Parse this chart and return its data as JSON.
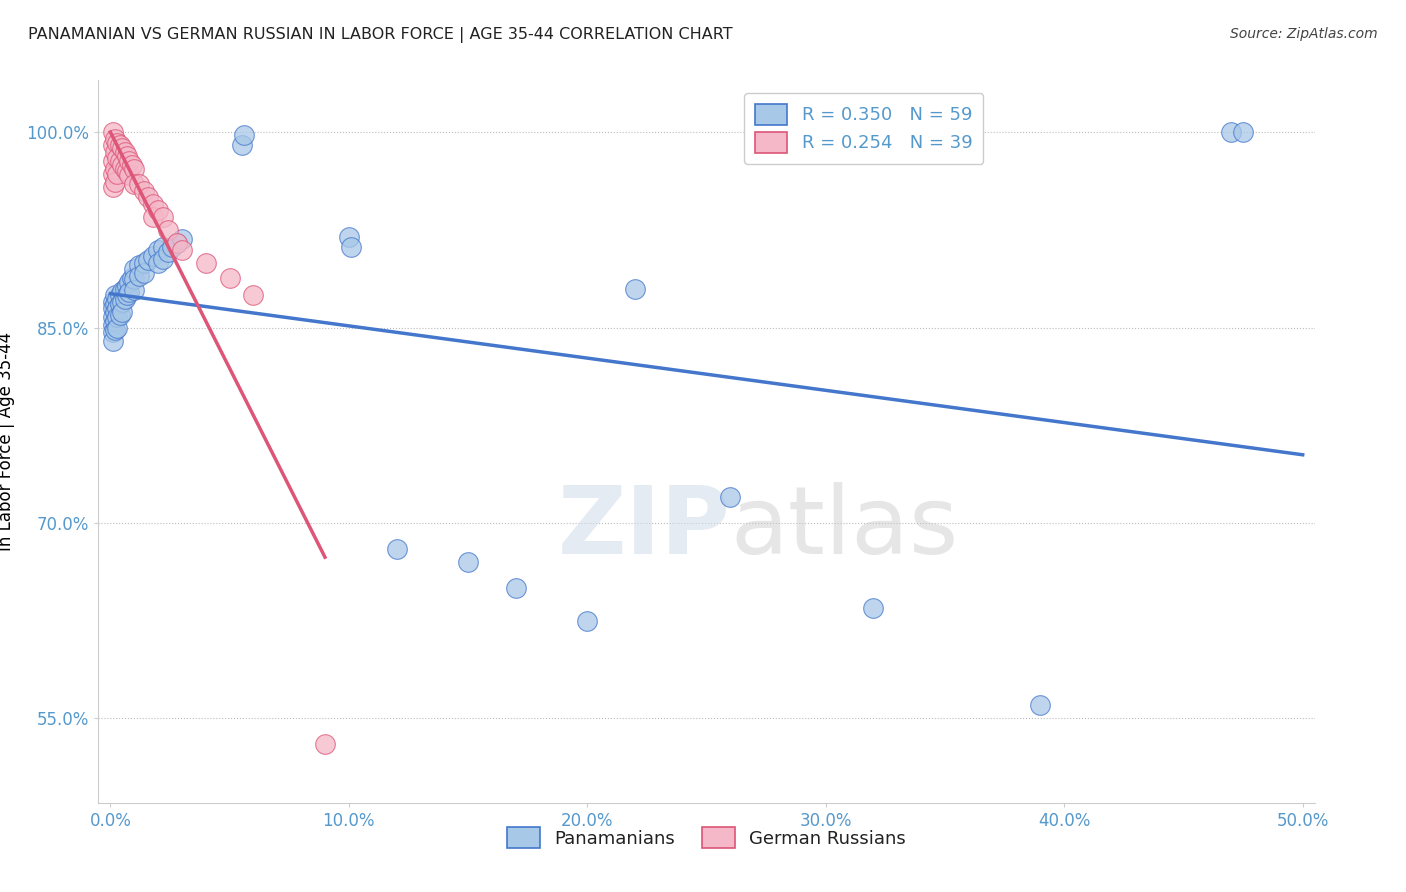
{
  "title": "PANAMANIAN VS GERMAN RUSSIAN IN LABOR FORCE | AGE 35-44 CORRELATION CHART",
  "source": "Source: ZipAtlas.com",
  "xlabel_label": "Panamanians",
  "ylabel_label": "In Labor Force | Age 35-44",
  "xlim": [
    -0.005,
    0.505
  ],
  "ylim": [
    0.485,
    1.04
  ],
  "xticks": [
    0.0,
    0.1,
    0.2,
    0.3,
    0.4,
    0.5
  ],
  "yticks": [
    0.55,
    0.7,
    0.85,
    1.0
  ],
  "ytick_labels": [
    "55.0%",
    "70.0%",
    "85.0%",
    "100.0%"
  ],
  "xtick_labels": [
    "0.0%",
    "10.0%",
    "20.0%",
    "30.0%",
    "40.0%",
    "50.0%"
  ],
  "legend_blue_r": "R = 0.350",
  "legend_blue_n": "N = 59",
  "legend_pink_r": "R = 0.254",
  "legend_pink_n": "N = 39",
  "blue_color": "#a8c8e8",
  "pink_color": "#f4b8c8",
  "trend_blue": "#4477cc",
  "trend_pink": "#dd5577",
  "axis_color": "#5599cc",
  "background": "#ffffff",
  "watermark_zip": "ZIP",
  "watermark_atlas": "atlas",
  "blue_x": [
    0.001,
    0.001,
    0.001,
    0.001,
    0.001,
    0.001,
    0.002,
    0.002,
    0.002,
    0.002,
    0.002,
    0.003,
    0.003,
    0.003,
    0.003,
    0.004,
    0.004,
    0.004,
    0.005,
    0.005,
    0.005,
    0.006,
    0.006,
    0.007,
    0.007,
    0.008,
    0.008,
    0.009,
    0.01,
    0.01,
    0.01,
    0.012,
    0.012,
    0.014,
    0.014,
    0.016,
    0.018,
    0.02,
    0.02,
    0.022,
    0.022,
    0.024,
    0.026,
    0.028,
    0.03,
    0.055,
    0.056,
    0.1,
    0.101,
    0.12,
    0.15,
    0.17,
    0.2,
    0.22,
    0.26,
    0.32,
    0.39,
    0.47,
    0.475
  ],
  "blue_y": [
    0.87,
    0.865,
    0.858,
    0.852,
    0.847,
    0.84,
    0.875,
    0.868,
    0.862,
    0.855,
    0.848,
    0.872,
    0.865,
    0.858,
    0.85,
    0.875,
    0.868,
    0.86,
    0.878,
    0.87,
    0.862,
    0.88,
    0.872,
    0.882,
    0.875,
    0.885,
    0.877,
    0.888,
    0.895,
    0.887,
    0.879,
    0.898,
    0.89,
    0.9,
    0.892,
    0.902,
    0.905,
    0.91,
    0.9,
    0.912,
    0.903,
    0.908,
    0.912,
    0.915,
    0.918,
    0.99,
    0.998,
    0.92,
    0.912,
    0.68,
    0.67,
    0.65,
    0.625,
    0.88,
    0.72,
    0.635,
    0.56,
    1.0,
    1.0
  ],
  "pink_x": [
    0.001,
    0.001,
    0.001,
    0.001,
    0.001,
    0.002,
    0.002,
    0.002,
    0.002,
    0.003,
    0.003,
    0.003,
    0.004,
    0.004,
    0.005,
    0.005,
    0.006,
    0.006,
    0.007,
    0.007,
    0.008,
    0.008,
    0.009,
    0.01,
    0.01,
    0.012,
    0.014,
    0.016,
    0.018,
    0.018,
    0.02,
    0.022,
    0.024,
    0.028,
    0.03,
    0.04,
    0.05,
    0.06,
    0.09
  ],
  "pink_y": [
    1.0,
    0.99,
    0.978,
    0.968,
    0.958,
    0.995,
    0.985,
    0.972,
    0.962,
    0.992,
    0.98,
    0.968,
    0.99,
    0.978,
    0.988,
    0.975,
    0.985,
    0.972,
    0.982,
    0.97,
    0.978,
    0.967,
    0.975,
    0.972,
    0.96,
    0.96,
    0.955,
    0.95,
    0.945,
    0.935,
    0.94,
    0.935,
    0.925,
    0.915,
    0.91,
    0.9,
    0.888,
    0.875,
    0.53
  ]
}
